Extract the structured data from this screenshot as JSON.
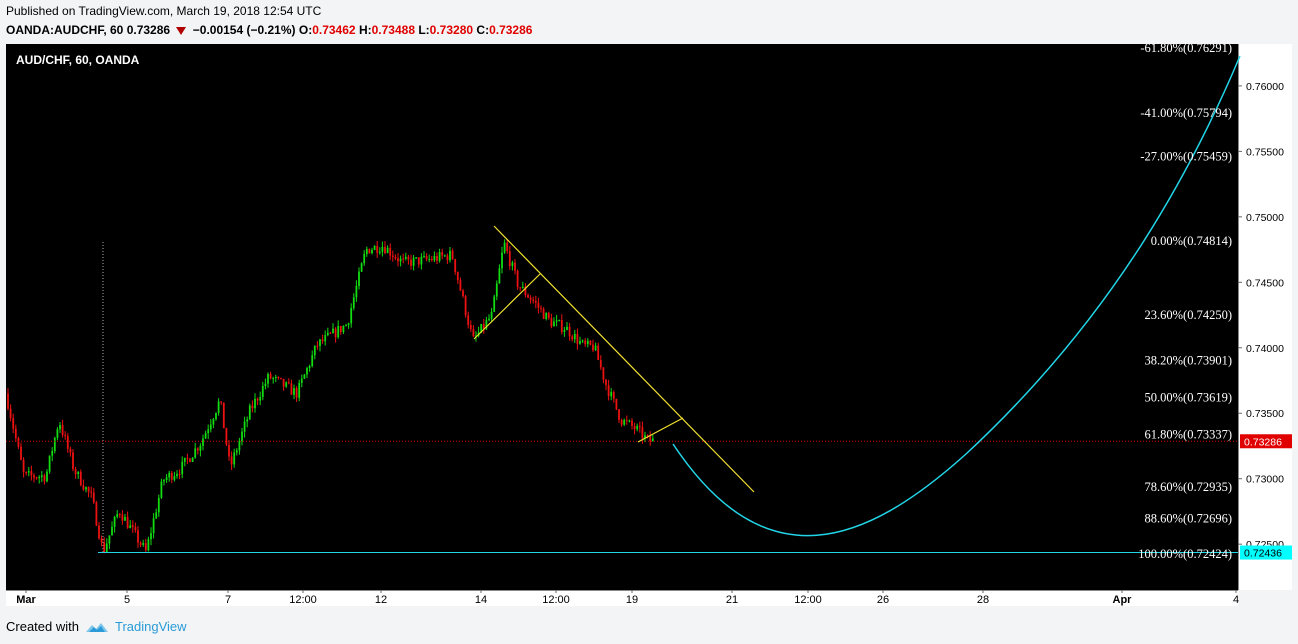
{
  "header": {
    "published": "Published on TradingView.com, March 19, 2018 12:54 UTC",
    "symbol": "OANDA:AUDCHF, 60",
    "last": "0.73286",
    "change": "−0.00154 (−0.21%)",
    "o_label": "O:",
    "o_value": "0.73462",
    "h_label": "H:",
    "h_value": "0.73488",
    "l_label": "L:",
    "l_value": "0.73280",
    "c_label": "C:",
    "c_value": "0.73286"
  },
  "footer": {
    "created_with": "Created with",
    "brand": "TradingView"
  },
  "colors": {
    "background": "#000000",
    "bull": "#11dd11",
    "bear": "#ee1111",
    "trendline": "#f2e230",
    "projection": "#22d6e8",
    "last_price": "#e00000",
    "support_label": "#00ffff"
  },
  "chart_data": {
    "type": "candlestick",
    "title": "AUD/CHF, 60, OANDA",
    "y_axis_ticks": [
      "0.76000",
      "0.75500",
      "0.75000",
      "0.74500",
      "0.74000",
      "0.73500",
      "0.73000",
      "0.72500"
    ],
    "x_axis_ticks": [
      "Mar",
      "5",
      "7",
      "12:00",
      "12",
      "14",
      "12:00",
      "19",
      "21",
      "12:00",
      "26",
      "28",
      "Apr",
      "4"
    ],
    "ylim": [
      0.7215,
      0.7632
    ],
    "last_price_label": "0.73286",
    "support_price_label": "0.72436",
    "price_path_x": [
      0,
      2,
      4,
      6,
      8,
      10,
      12,
      14,
      16,
      18,
      20,
      22,
      24,
      26,
      28,
      30,
      32,
      34,
      36,
      38,
      40,
      42,
      44,
      46,
      48,
      50
    ],
    "price_path_close": [
      0.7365,
      0.7302,
      0.7345,
      0.7307,
      0.7285,
      0.7244,
      0.7276,
      0.7244,
      0.7299,
      0.7308,
      0.7328,
      0.736,
      0.7308,
      0.7352,
      0.7378,
      0.7365,
      0.7402,
      0.7418,
      0.7475,
      0.7478,
      0.7465,
      0.7467,
      0.7435,
      0.7425,
      0.748,
      0.7448
    ],
    "price_path_close_continued": [
      0.7435,
      0.742,
      0.7401,
      0.7372,
      0.7345,
      0.7338,
      0.7329
    ],
    "fibonacci_levels": [
      {
        "label": "-61.80%(0.76291)",
        "price": 0.76291
      },
      {
        "label": "-41.00%(0.75794)",
        "price": 0.75794
      },
      {
        "label": "-27.00%(0.75459)",
        "price": 0.75459
      },
      {
        "label": "0.00%(0.74814)",
        "price": 0.74814
      },
      {
        "label": "23.60%(0.74250)",
        "price": 0.7425
      },
      {
        "label": "38.20%(0.73901)",
        "price": 0.73901
      },
      {
        "label": "50.00%(0.73619)",
        "price": 0.73619
      },
      {
        "label": "61.80%(0.73337)",
        "price": 0.73337
      },
      {
        "label": "78.60%(0.72935)",
        "price": 0.72935
      },
      {
        "label": "88.60%(0.72696)",
        "price": 0.72696
      },
      {
        "label": "100.00%(0.72424)",
        "price": 0.72424
      }
    ]
  }
}
